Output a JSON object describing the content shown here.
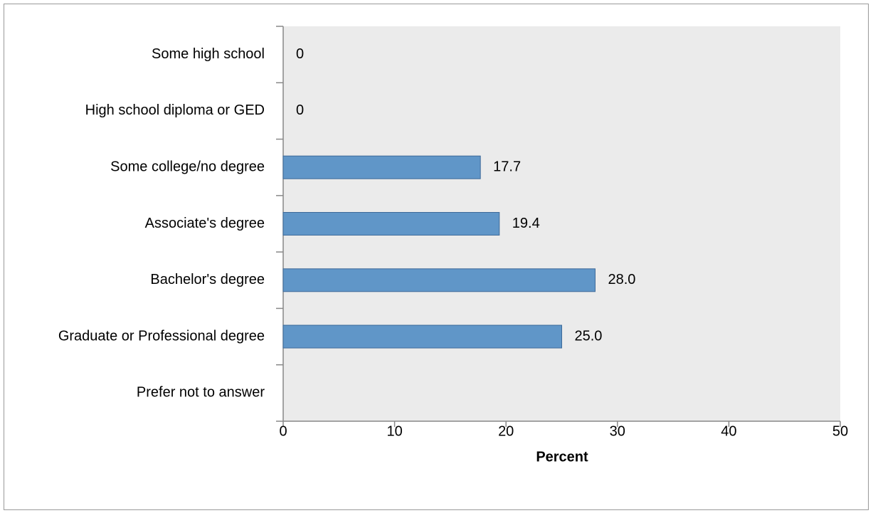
{
  "chart_data": {
    "type": "hbar",
    "categories": [
      "Some high school",
      "High school diploma or GED",
      "Some college/no degree",
      "Associate's degree",
      "Bachelor's degree",
      "Graduate or Professional degree",
      "Prefer not to answer"
    ],
    "values": [
      0,
      0,
      17.7,
      19.4,
      28.0,
      25.0,
      null
    ],
    "value_labels": [
      "0",
      "0",
      "17.7",
      "19.4",
      "28.0",
      "25.0",
      null
    ],
    "color": "#6096c8",
    "xlabel": "Percent",
    "xlim": [
      0,
      50
    ],
    "xticks": [
      0,
      10,
      20,
      30,
      40,
      50
    ],
    "grid": false
  }
}
